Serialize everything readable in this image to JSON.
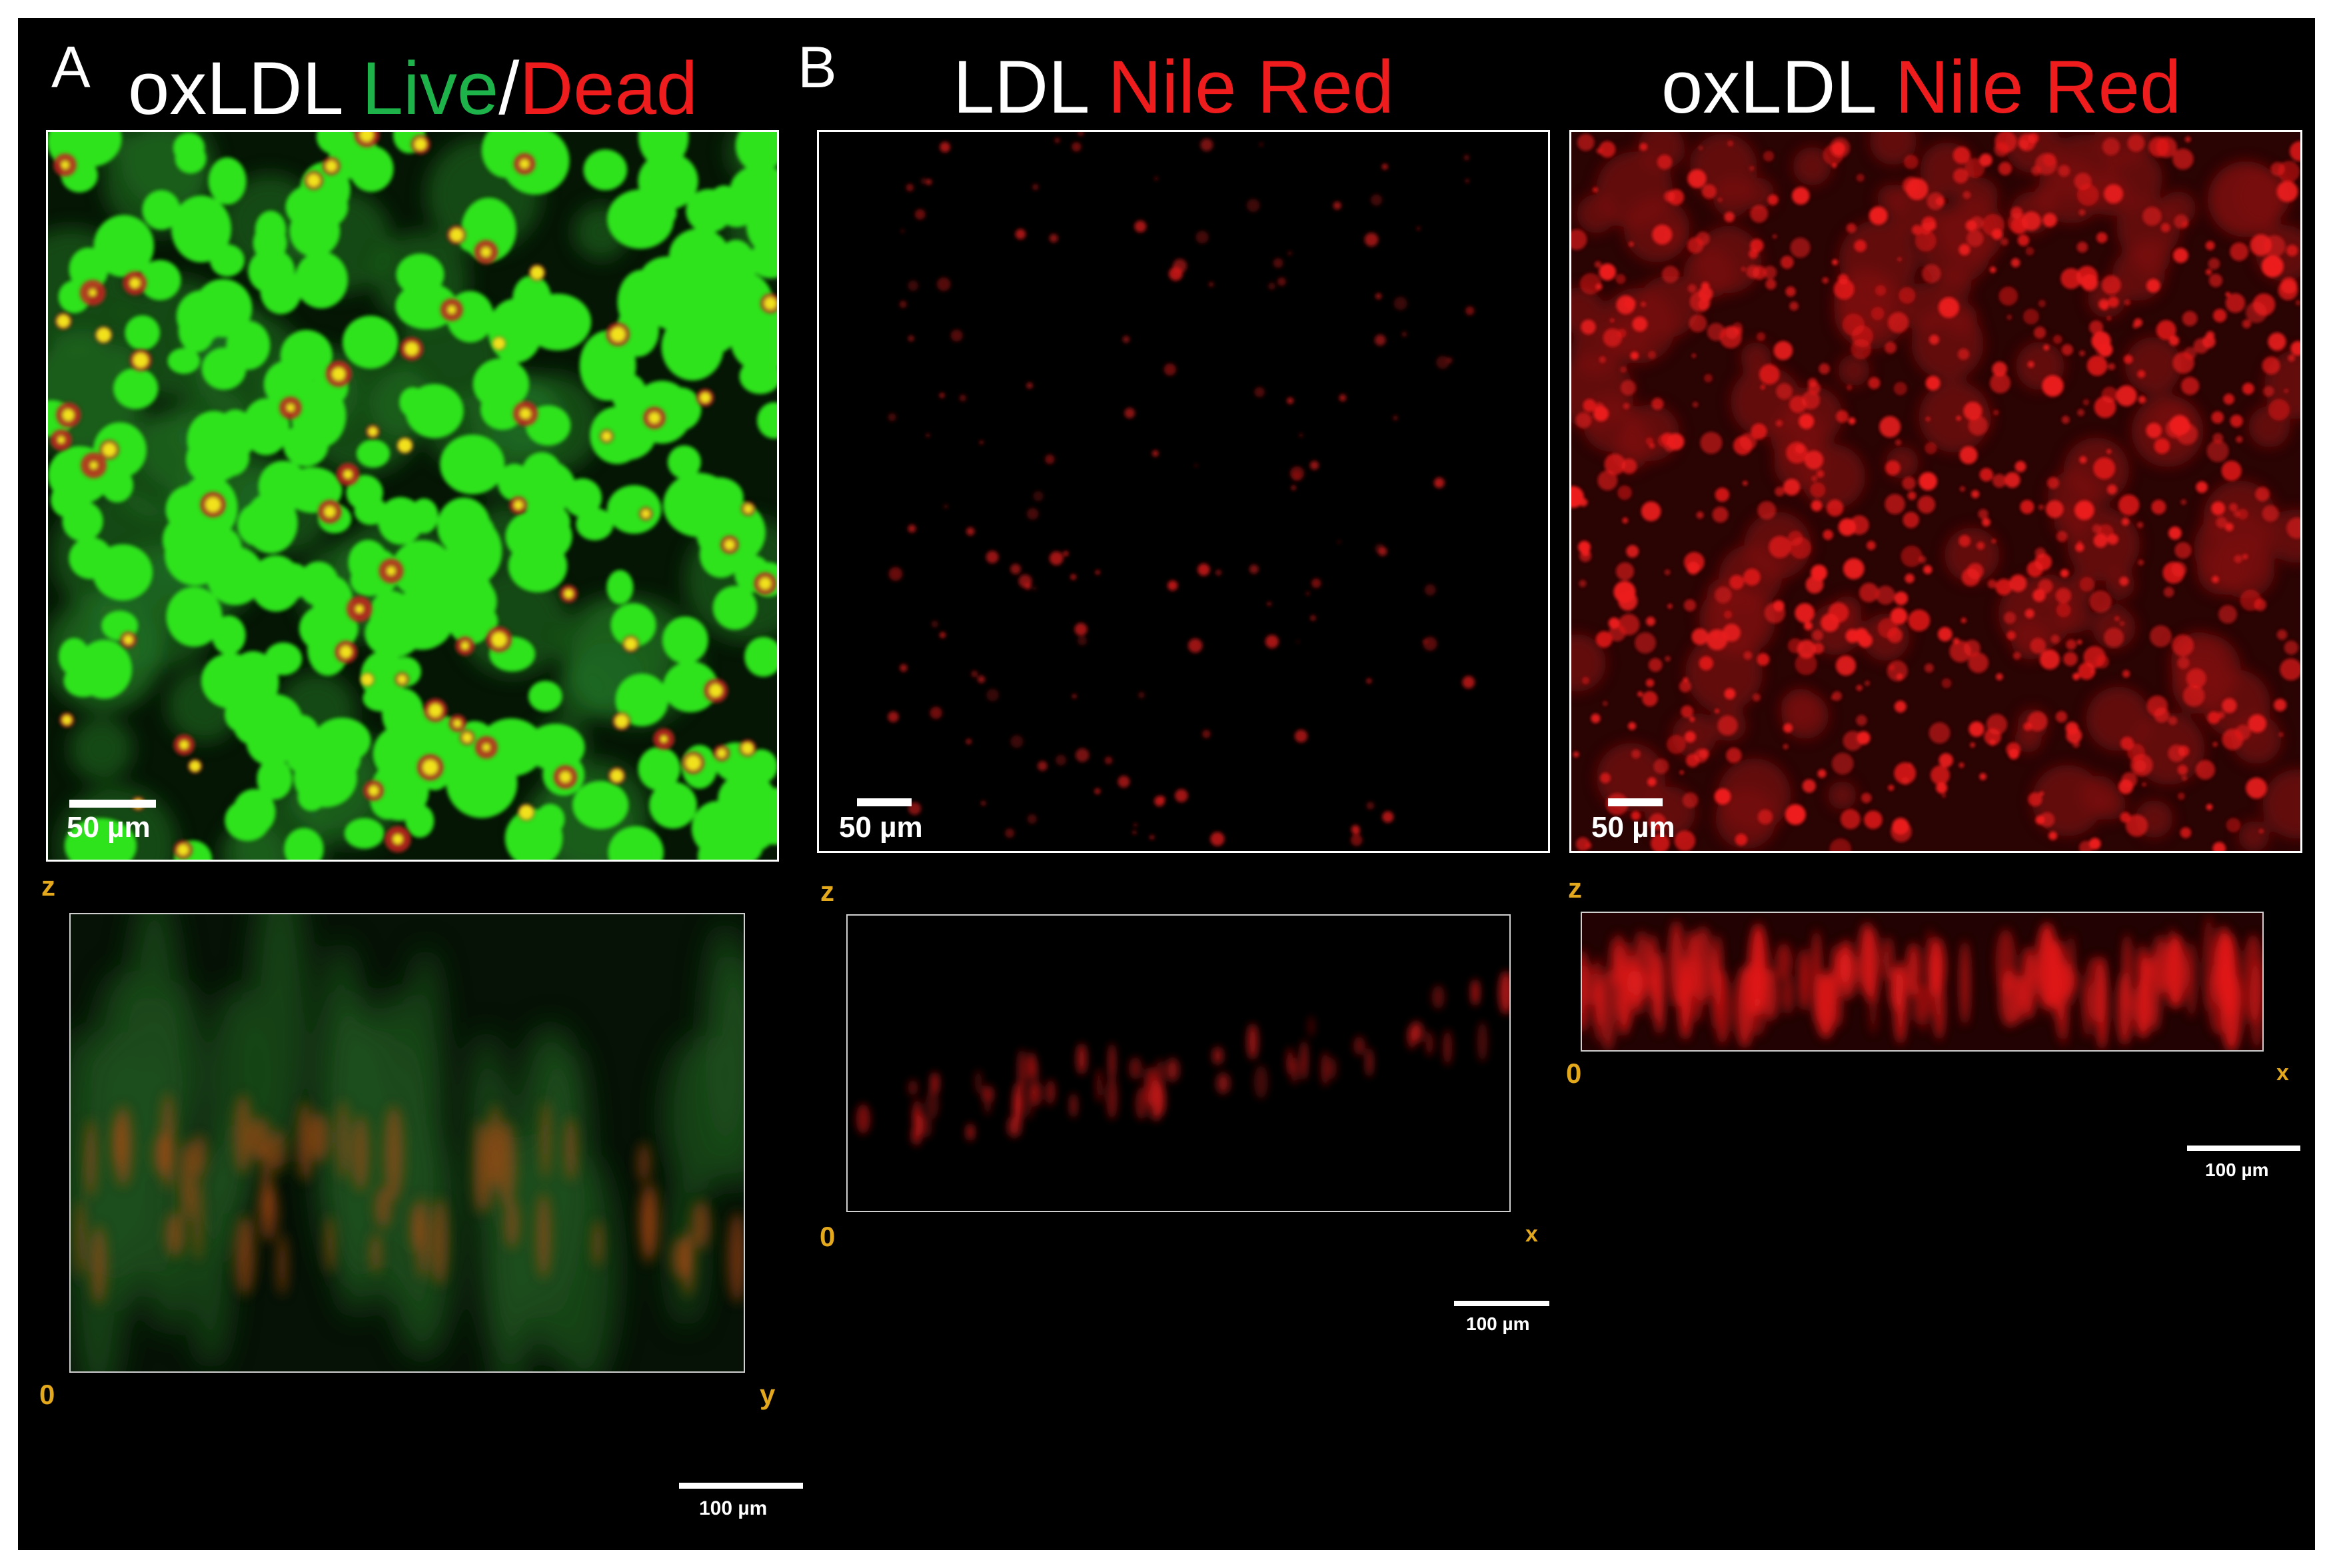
{
  "panels": {
    "A": {
      "letter": "A",
      "title": {
        "prefix": "oxLDL ",
        "live": "Live",
        "slash": "/",
        "dead": "Dead"
      },
      "top_scalebar": "50 µm",
      "ortho": {
        "axis_top": "z",
        "axis_bottom_left": "0",
        "axis_bottom_right": "y",
        "scalebar": "100 µm"
      }
    },
    "B": {
      "letter": "B",
      "left": {
        "title": {
          "prefix": "LDL ",
          "stain": "Nile Red"
        },
        "top_scalebar": "50 µm",
        "ortho": {
          "axis_top": "z",
          "axis_bottom_left": "0",
          "axis_bottom_right": "x",
          "scalebar": "100 µm"
        }
      },
      "right": {
        "title": {
          "prefix": "oxLDL ",
          "stain": "Nile Red"
        },
        "top_scalebar": "50 µm",
        "ortho": {
          "axis_top": "z",
          "axis_bottom_left": "0",
          "axis_bottom_right": "x",
          "scalebar": "100 µm"
        }
      }
    }
  },
  "colors": {
    "background": "#000000",
    "live": "#1db34a",
    "dead": "#ee1c1c",
    "nile_red": "#ee1c1c",
    "axis_label": "#e3a81c",
    "frame": "#ffffff"
  }
}
